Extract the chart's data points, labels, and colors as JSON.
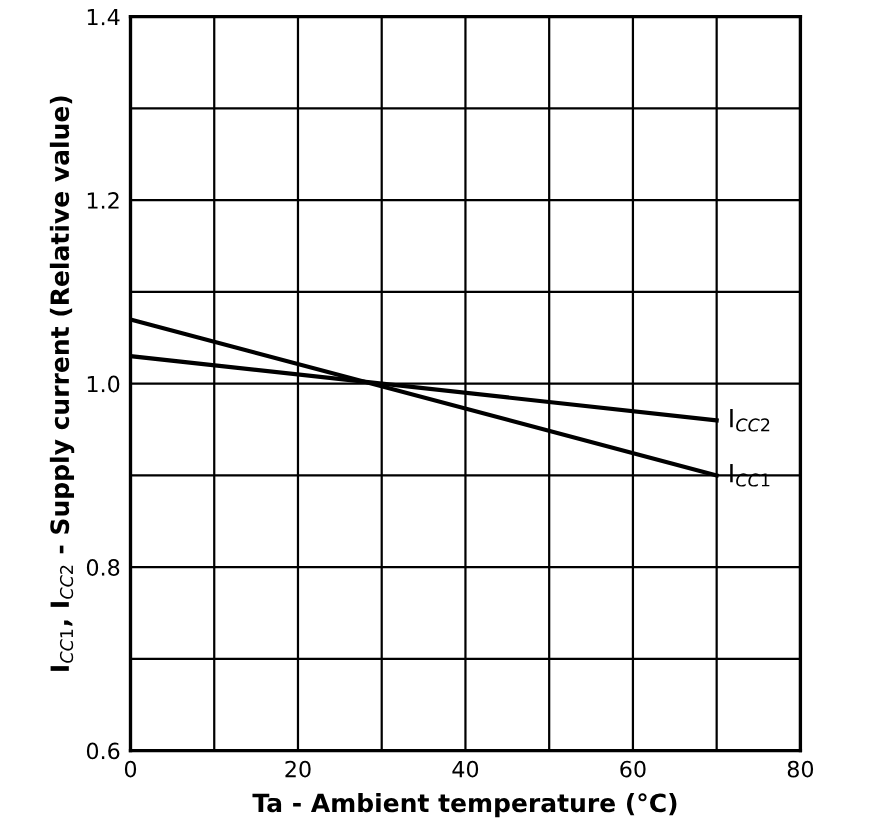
{
  "chart_data": {
    "type": "line",
    "xlabel": "Ta - Ambient temperature (°C)",
    "ylabel": "I$_{CC1}$, I$_{CC2}$ - Supply current (Relative value)",
    "x": [
      0,
      70
    ],
    "series": [
      {
        "name": "I$_{CC2}$",
        "color": "#000000",
        "values": [
          1.03,
          0.96
        ]
      },
      {
        "name": "I$_{CC1}$",
        "color": "#000000",
        "values": [
          1.07,
          0.9
        ]
      }
    ],
    "xlim": [
      0,
      80
    ],
    "ylim": [
      0.6,
      1.4
    ],
    "xticks": [
      0,
      {
        "value": 10,
        "label": null
      },
      20,
      {
        "value": 30,
        "label": null
      },
      40,
      {
        "value": 50,
        "label": null
      },
      60,
      {
        "value": 70,
        "label": null
      },
      80
    ],
    "yticks": [
      0.6,
      {
        "value": 0.7,
        "label": null
      },
      0.8,
      {
        "value": 0.9,
        "label": null
      },
      {
        "value": 1.0,
        "label": "1.0"
      },
      {
        "value": 1.1,
        "label": null
      },
      1.2,
      {
        "value": 1.3,
        "label": null
      },
      1.4
    ],
    "grid": true,
    "marker": "none",
    "line_style": "solid"
  }
}
